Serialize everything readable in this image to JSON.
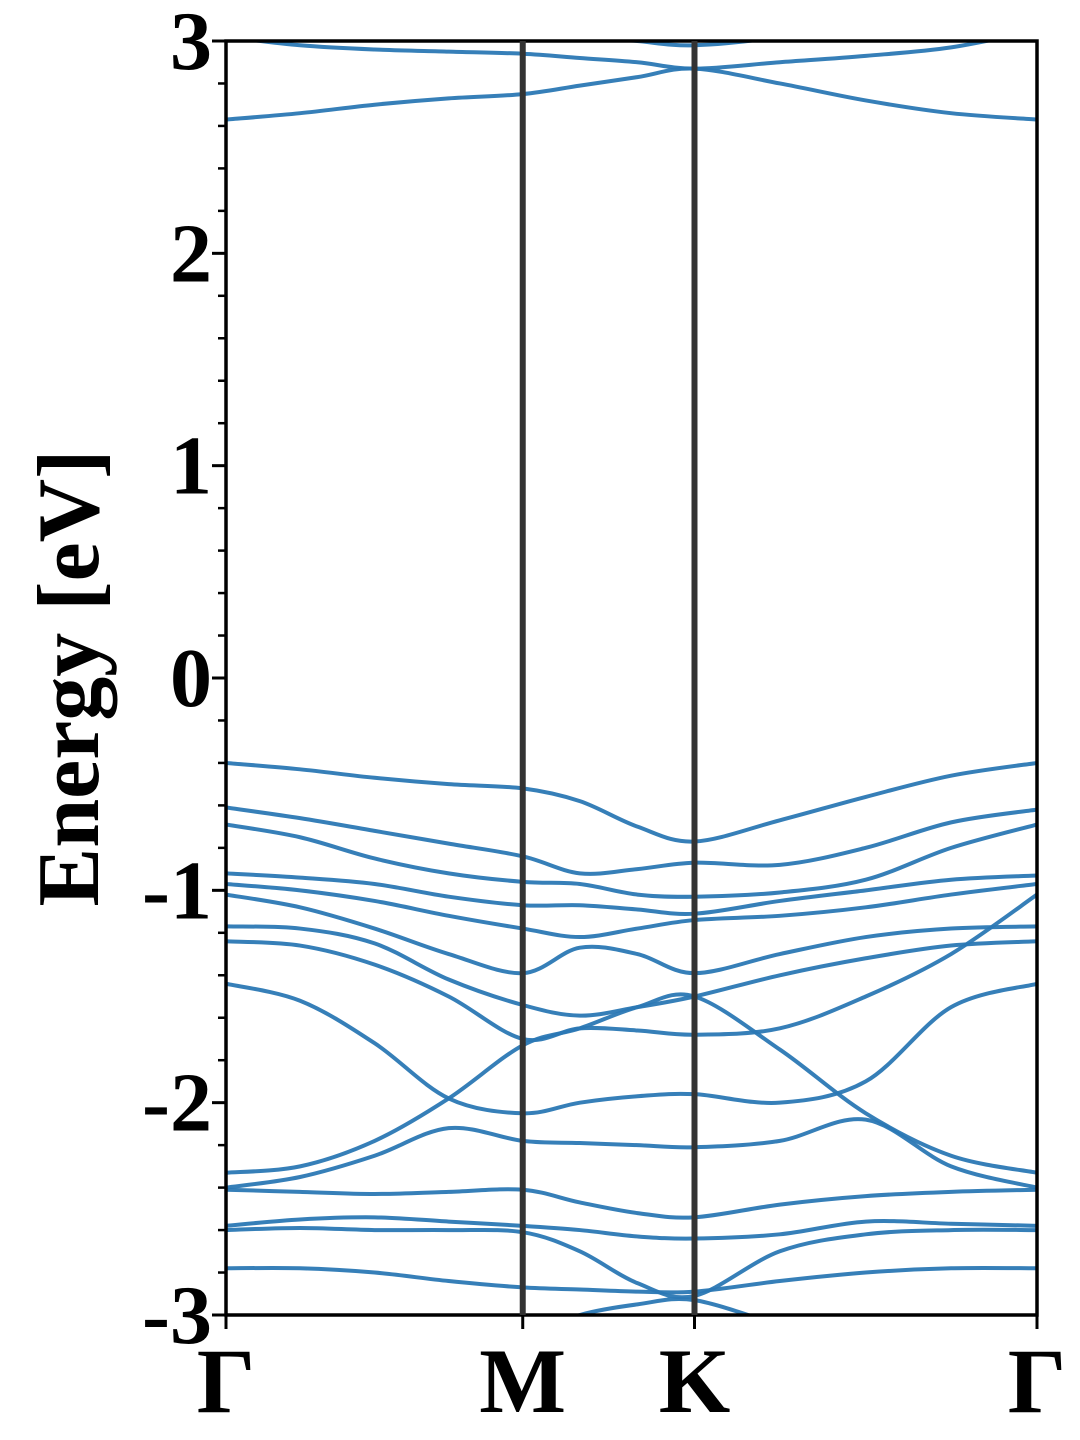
{
  "chart_data": {
    "type": "line",
    "ylabel": "Energy [eV]",
    "color": "#2b78b4",
    "line_color": "#333333",
    "x": [
      0,
      0.144,
      0.289,
      0.433,
      0.577,
      0.688,
      0.8,
      0.911,
      1.077,
      1.244,
      1.41,
      1.577
    ],
    "xlim": [
      0,
      1.577
    ],
    "xticks": [
      {
        "value": 0,
        "label": "Γ"
      },
      {
        "value": 0.577,
        "label": "M"
      },
      {
        "value": 0.911,
        "label": "K"
      },
      {
        "value": 1.577,
        "label": "Γ"
      }
    ],
    "ylim": [
      -3,
      3
    ],
    "yticks": [
      -3,
      -2,
      -1,
      0,
      1,
      2,
      3
    ],
    "yminorticks": [
      -2.8,
      -2.6,
      -2.4,
      -2.2,
      -1.8,
      -1.6,
      -1.4,
      -1.2,
      -0.8,
      -0.6,
      -0.4,
      -0.2,
      0.2,
      0.4,
      0.6,
      0.8,
      1.2,
      1.4,
      1.6,
      1.8,
      2.2,
      2.4,
      2.6,
      2.8
    ],
    "series": [
      {
        "values": [
          3.02,
          2.98,
          2.96,
          2.95,
          2.94,
          2.92,
          2.9,
          2.87,
          2.9,
          2.93,
          2.97,
          3.05
        ]
      },
      {
        "values": [
          2.63,
          2.66,
          2.7,
          2.73,
          2.75,
          2.79,
          2.83,
          2.87,
          2.8,
          2.72,
          2.66,
          2.63
        ]
      },
      {
        "values": [
          null,
          null,
          null,
          null,
          3.1,
          3.03,
          3.0,
          2.98,
          3.02,
          3.1,
          null,
          null
        ]
      },
      {
        "values": [
          -0.4,
          -0.43,
          -0.47,
          -0.5,
          -0.52,
          -0.58,
          -0.7,
          -0.77,
          -0.67,
          -0.56,
          -0.46,
          -0.4
        ]
      },
      {
        "values": [
          -0.61,
          -0.66,
          -0.72,
          -0.78,
          -0.84,
          -0.92,
          -0.9,
          -0.87,
          -0.88,
          -0.8,
          -0.68,
          -0.62
        ]
      },
      {
        "values": [
          -0.69,
          -0.75,
          -0.85,
          -0.92,
          -0.96,
          -0.97,
          -1.02,
          -1.03,
          -1.01,
          -0.95,
          -0.8,
          -0.69
        ]
      },
      {
        "values": [
          -0.92,
          -0.94,
          -0.97,
          -1.03,
          -1.07,
          -1.07,
          -1.09,
          -1.11,
          -1.05,
          -1.0,
          -0.95,
          -0.93
        ]
      },
      {
        "values": [
          -0.97,
          -1.0,
          -1.05,
          -1.12,
          -1.18,
          -1.22,
          -1.18,
          -1.14,
          -1.12,
          -1.08,
          -1.02,
          -0.97
        ]
      },
      {
        "values": [
          -1.02,
          -1.08,
          -1.18,
          -1.3,
          -1.39,
          -1.27,
          -1.3,
          -1.39,
          -1.3,
          -1.22,
          -1.18,
          -1.17
        ]
      },
      {
        "values": [
          -1.17,
          -1.18,
          -1.25,
          -1.42,
          -1.54,
          -1.59,
          -1.55,
          -1.5,
          -1.4,
          -1.32,
          -1.26,
          -1.24
        ]
      },
      {
        "values": [
          -1.24,
          -1.26,
          -1.35,
          -1.5,
          -1.7,
          -1.65,
          -1.66,
          -1.68,
          -1.65,
          -1.5,
          -1.3,
          -1.02
        ]
      },
      {
        "values": [
          -1.44,
          -1.52,
          -1.72,
          -1.98,
          -2.05,
          -2.0,
          -1.97,
          -1.96,
          -2.0,
          -1.9,
          -1.55,
          -1.44
        ]
      },
      {
        "values": [
          -2.33,
          -2.3,
          -2.18,
          -1.98,
          -1.73,
          -1.65,
          -1.55,
          -1.5,
          -1.75,
          -2.05,
          -2.25,
          -2.33
        ]
      },
      {
        "values": [
          -2.4,
          -2.35,
          -2.25,
          -2.12,
          -2.18,
          -2.19,
          -2.2,
          -2.21,
          -2.18,
          -2.08,
          -2.3,
          -2.4
        ]
      },
      {
        "values": [
          -2.41,
          -2.42,
          -2.43,
          -2.42,
          -2.41,
          -2.47,
          -2.52,
          -2.54,
          -2.48,
          -2.44,
          -2.42,
          -2.41
        ]
      },
      {
        "values": [
          -2.58,
          -2.55,
          -2.54,
          -2.56,
          -2.58,
          -2.6,
          -2.63,
          -2.64,
          -2.62,
          -2.56,
          -2.57,
          -2.58
        ]
      },
      {
        "values": [
          -2.6,
          -2.59,
          -2.6,
          -2.6,
          -2.61,
          -2.7,
          -2.85,
          -2.91,
          -2.7,
          -2.62,
          -2.6,
          -2.6
        ]
      },
      {
        "values": [
          -2.78,
          -2.78,
          -2.8,
          -2.84,
          -2.87,
          -2.88,
          -2.89,
          -2.89,
          -2.84,
          -2.8,
          -2.78,
          -2.78
        ]
      },
      {
        "values": [
          null,
          null,
          null,
          null,
          -3.1,
          -3.0,
          -2.95,
          -2.93,
          -3.05,
          null,
          null,
          null
        ]
      }
    ]
  }
}
